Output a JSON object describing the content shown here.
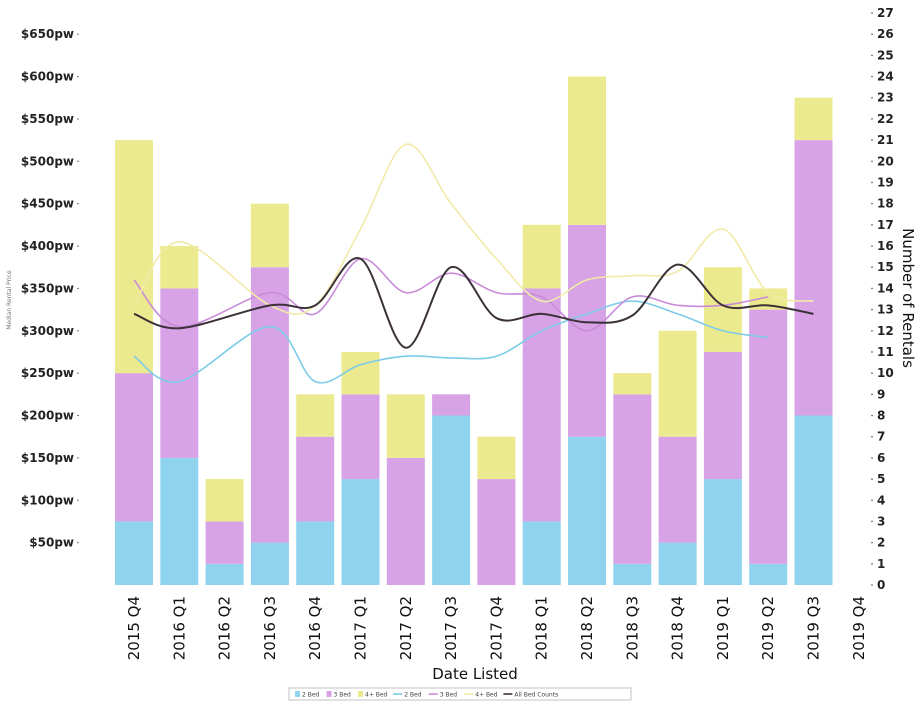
{
  "chart_data": {
    "type": "bar",
    "xlabel": "Date Listed",
    "ylabel_left": "Median Rental Price",
    "ylabel_right": "Number of Rentals",
    "categories": [
      "2015 Q4",
      "2016 Q1",
      "2016 Q2",
      "2016 Q3",
      "2016 Q4",
      "2017 Q1",
      "2017 Q2",
      "2017 Q3",
      "2017 Q4",
      "2018 Q1",
      "2018 Q2",
      "2018 Q3",
      "2018 Q4",
      "2019 Q1",
      "2019 Q2",
      "2019 Q3",
      "2019 Q4"
    ],
    "left_axis": {
      "ticks": [
        "$50pw",
        "$100pw",
        "$150pw",
        "$200pw",
        "$250pw",
        "$300pw",
        "$350pw",
        "$400pw",
        "$450pw",
        "$500pw",
        "$550pw",
        "$600pw",
        "$650pw"
      ],
      "tick_values": [
        50,
        100,
        150,
        200,
        250,
        300,
        350,
        400,
        450,
        500,
        550,
        600,
        650
      ],
      "ylim": [
        0,
        675
      ]
    },
    "right_axis": {
      "ticks": [
        "0",
        "1",
        "2",
        "3",
        "4",
        "5",
        "6",
        "7",
        "8",
        "9",
        "10",
        "11",
        "12",
        "13",
        "14",
        "15",
        "16",
        "17",
        "18",
        "19",
        "20",
        "21",
        "22",
        "23",
        "24",
        "25",
        "26",
        "27"
      ],
      "ylim": [
        0,
        27
      ]
    },
    "bar_series": [
      {
        "name": "2 Bed",
        "color": "#8fd3ee",
        "values": [
          3,
          6,
          1,
          2,
          3,
          5,
          0,
          8,
          0,
          3,
          7,
          1,
          2,
          5,
          1,
          8,
          0
        ]
      },
      {
        "name": "3 Bed",
        "color": "#d8a3e6",
        "values": [
          7,
          8,
          2,
          13,
          4,
          4,
          6,
          1,
          5,
          11,
          10,
          8,
          5,
          6,
          12,
          13,
          0
        ]
      },
      {
        "name": "4+ Bed",
        "color": "#ecea8e",
        "values": [
          11,
          2,
          2,
          3,
          2,
          2,
          3,
          0,
          2,
          3,
          7,
          1,
          5,
          4,
          1,
          2,
          0
        ]
      }
    ],
    "line_series": [
      {
        "name": "2 Bed",
        "color": "#7ccbe8",
        "values": [
          270,
          240,
          null,
          305,
          240,
          260,
          270,
          268,
          270,
          300,
          320,
          335,
          320,
          300,
          292,
          null,
          null
        ]
      },
      {
        "name": "3 Bed",
        "color": "#c98ad9",
        "values": [
          360,
          305,
          null,
          345,
          320,
          385,
          345,
          368,
          345,
          340,
          300,
          340,
          330,
          330,
          340,
          null,
          null
        ]
      },
      {
        "name": "4+ Bed",
        "color": "#f2eaa8",
        "values": [
          330,
          405,
          null,
          330,
          330,
          420,
          520,
          450,
          385,
          335,
          360,
          365,
          370,
          420,
          345,
          335,
          null
        ]
      },
      {
        "name": "All Bed Counts",
        "color": "#3b3138",
        "values": [
          320,
          303,
          null,
          330,
          330,
          385,
          280,
          375,
          315,
          320,
          310,
          318,
          378,
          330,
          330,
          320,
          null
        ]
      }
    ],
    "legend": {
      "position": "bottom",
      "items": [
        "2 Bed",
        "3 Bed",
        "4+ Bed",
        "2 Bed",
        "3 Bed",
        "4+ Bed",
        "All Bed Counts"
      ]
    }
  }
}
